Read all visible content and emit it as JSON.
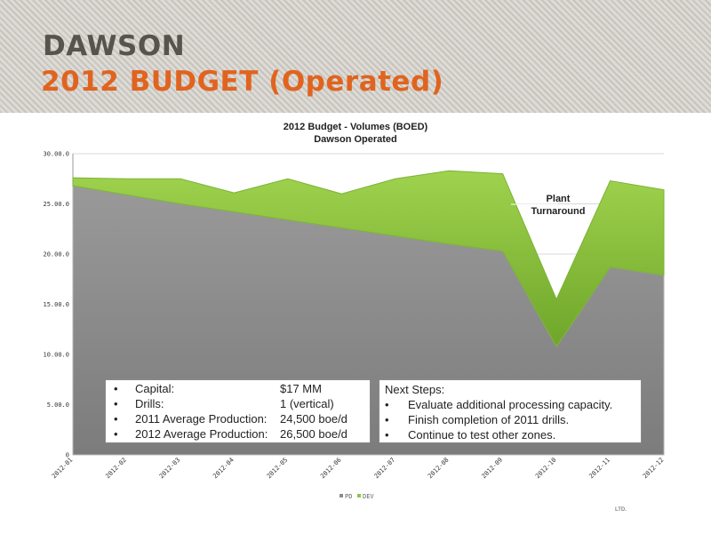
{
  "slide": {
    "title_line1": "DAWSON",
    "title_line2": "2012 BUDGET (Operated)",
    "logo_text": "LTD."
  },
  "chart_data": {
    "type": "area",
    "title": "2012 Budget - Volumes  (BOED)",
    "subtitle": "Dawson Operated",
    "stacked": true,
    "categories": [
      "2012-01",
      "2012-02",
      "2012-03",
      "2012-04",
      "2012-05",
      "2012-06",
      "2012-07",
      "2012-08",
      "2012-09",
      "2012-10",
      "2012-11",
      "2012-12"
    ],
    "series": [
      {
        "name": "PD",
        "color": "#8a8a8a",
        "values": [
          26.8,
          25.9,
          25.0,
          24.2,
          23.4,
          22.6,
          21.8,
          21.0,
          20.3,
          10.8,
          18.7,
          17.9
        ]
      },
      {
        "name": "DEV",
        "color": "#8dc63f",
        "values": [
          0.8,
          1.6,
          2.5,
          1.9,
          4.1,
          3.4,
          5.7,
          7.3,
          7.7,
          4.7,
          8.6,
          8.5
        ]
      }
    ],
    "ylim": [
      0,
      30
    ],
    "yticks": [
      "0",
      "5.00.0",
      "10.00.0",
      "15.00.0",
      "20.00.0",
      "25.00.0",
      "30.00.0"
    ],
    "annotation": [
      "Plant",
      "Turnaround"
    ],
    "grid": "horizontal",
    "legend": "bottom"
  },
  "budget_box": {
    "rows": [
      {
        "bullet": "•",
        "label": "Capital:",
        "value": "$17 MM"
      },
      {
        "bullet": "•",
        "label": "Drills:",
        "value": "1 (vertical)"
      },
      {
        "bullet": "•",
        "label": "2011 Average Production:",
        "value": "24,500 boe/d"
      },
      {
        "bullet": "•",
        "label": "2012 Average Production:",
        "value": "26,500 boe/d"
      }
    ]
  },
  "next_steps": {
    "heading": "Next Steps:",
    "items": [
      {
        "bullet": "•",
        "text": "Evaluate additional processing capacity."
      },
      {
        "bullet": "•",
        "text": "Finish completion of 2011 drills."
      },
      {
        "bullet": "•",
        "text": "Continue to test other zones."
      }
    ]
  }
}
